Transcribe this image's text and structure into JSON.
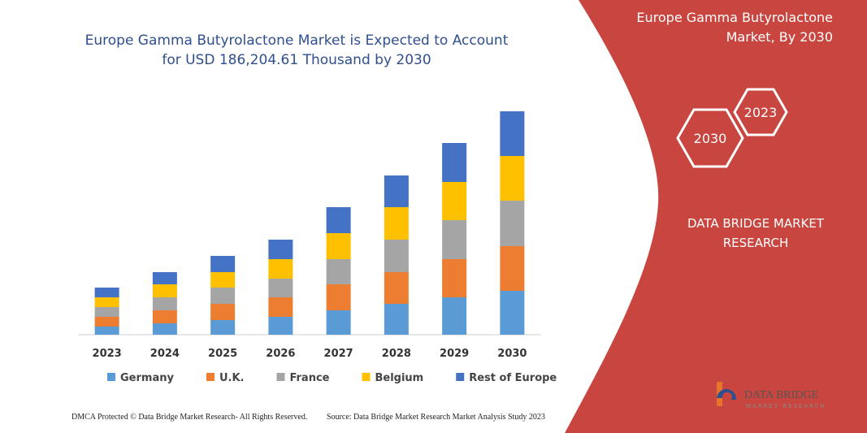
{
  "chart_data": {
    "type": "bar",
    "stacked": true,
    "title": "Europe Gamma Butyrolactone Market is Expected to Account for USD 186,204.61 Thousand by 2030",
    "categories": [
      "2023",
      "2024",
      "2025",
      "2026",
      "2027",
      "2028",
      "2029",
      "2030"
    ],
    "series": [
      {
        "name": "Germany",
        "color": "#5b9bd5",
        "values": [
          10,
          14,
          18,
          22,
          30,
          38,
          46,
          54
        ]
      },
      {
        "name": "U.K.",
        "color": "#ed7d31",
        "values": [
          12,
          16,
          20,
          24,
          32,
          39,
          47,
          55
        ]
      },
      {
        "name": "France",
        "color": "#a5a5a5",
        "values": [
          12,
          16,
          20,
          23,
          31,
          40,
          48,
          56
        ]
      },
      {
        "name": "Belgium",
        "color": "#ffc000",
        "values": [
          12,
          16,
          19,
          24,
          32,
          40,
          47,
          55
        ]
      },
      {
        "name": "Rest of Europe",
        "color": "#4472c4",
        "values": [
          12,
          15,
          20,
          24,
          32,
          39,
          48,
          55
        ]
      }
    ],
    "legend": "bottom"
  },
  "panel": {
    "title": "Europe Gamma Butyrolactone Market, By 2030",
    "hexagons": [
      "2023",
      "2030"
    ],
    "brand": "DATA BRIDGE MARKET RESEARCH"
  },
  "logo": {
    "name": "DATA BRIDGE",
    "tagline": "MARKET RESEARCH"
  },
  "footer": {
    "left": "DMCA Protected © Data Bridge Market Research-  All Rights Reserved.",
    "right": "Source: Data Bridge Market Research  Market Analysis Study 2023"
  }
}
